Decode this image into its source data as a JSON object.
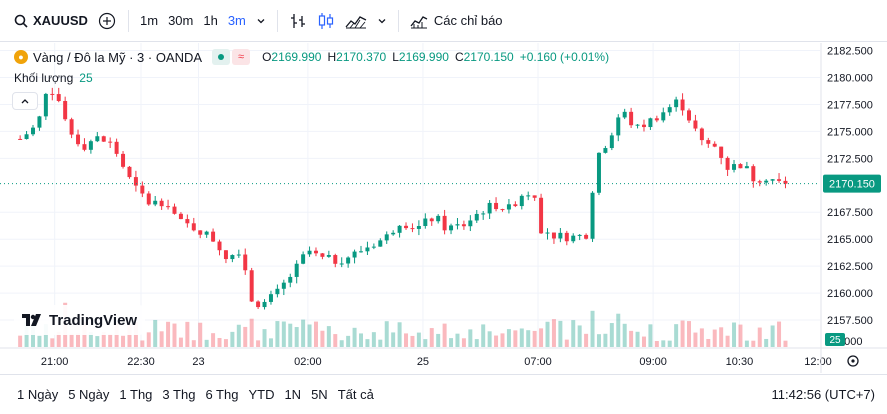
{
  "toolbar": {
    "symbol": "XAUUSD",
    "intervals": [
      "1m",
      "30m",
      "1h",
      "3m"
    ],
    "active_interval": "3m",
    "indicators_label": "Các chỉ báo"
  },
  "legend": {
    "symbol_name": "Vàng / Đô la Mỹ · 3 · OANDA",
    "open_label": "O",
    "open": "2169.990",
    "high_label": "H",
    "high": "2170.370",
    "low_label": "L",
    "low": "2169.990",
    "close_label": "C",
    "close": "2170.150",
    "change": "+0.160 (+0.01%)",
    "volume_label": "Khối lượng",
    "volume_value": "25"
  },
  "watermark": "TradingView",
  "bottom": {
    "ranges": [
      "1 Ngày",
      "5 Ngày",
      "1 Thg",
      "3 Thg",
      "6 Thg",
      "YTD",
      "1N",
      "5N",
      "Tất cả"
    ],
    "clock": "11:42:56 (UTC+7)"
  },
  "colors": {
    "up": "#089981",
    "down": "#f23645",
    "accent": "#2962ff"
  },
  "chart_data": {
    "type": "candlestick",
    "symbol": "XAUUSD",
    "interval": "3m",
    "y_ticks": [
      "2182.500",
      "2180.000",
      "2177.500",
      "2175.000",
      "2172.500",
      "2167.500",
      "2165.000",
      "2162.500",
      "2160.000",
      "2157.500"
    ],
    "ylim": [
      2155.0,
      2183.2
    ],
    "last_price": "2170.150",
    "last_volume": "25",
    "volume_axis_label": "5.000",
    "x_ticks": [
      "21:00",
      "22:30",
      "23",
      "02:00",
      "25",
      "07:00",
      "09:00",
      "10:30",
      "12:00"
    ],
    "x_tick_positions": [
      0.6,
      2.1,
      3.1,
      5.0,
      7.0,
      9.0,
      11.0,
      12.5,
      14.0
    ],
    "xlim": [
      -0.35,
      13.9
    ],
    "price_path": [
      [
        0.0,
        2174.3
      ],
      [
        0.3,
        2175.6
      ],
      [
        0.5,
        2179.3
      ],
      [
        0.65,
        2178.2
      ],
      [
        0.85,
        2175.0
      ],
      [
        1.1,
        2173.6
      ],
      [
        1.3,
        2174.4
      ],
      [
        1.6,
        2173.8
      ],
      [
        1.95,
        2170.0
      ],
      [
        2.25,
        2168.3
      ],
      [
        2.55,
        2168.6
      ],
      [
        2.75,
        2166.6
      ],
      [
        3.1,
        2165.9
      ],
      [
        3.35,
        2165.0
      ],
      [
        3.6,
        2163.3
      ],
      [
        3.85,
        2164.2
      ],
      [
        4.0,
        2159.5
      ],
      [
        4.2,
        2158.9
      ],
      [
        4.45,
        2159.9
      ],
      [
        4.8,
        2162.3
      ],
      [
        5.0,
        2164.0
      ],
      [
        5.2,
        2163.2
      ],
      [
        5.5,
        2163.0
      ],
      [
        5.8,
        2163.6
      ],
      [
        6.1,
        2164.5
      ],
      [
        6.35,
        2165.1
      ],
      [
        6.6,
        2166.7
      ],
      [
        6.9,
        2166.0
      ],
      [
        7.2,
        2167.1
      ],
      [
        7.4,
        2166.0
      ],
      [
        7.7,
        2166.3
      ],
      [
        8.0,
        2167.6
      ],
      [
        8.25,
        2168.2
      ],
      [
        8.5,
        2167.8
      ],
      [
        8.75,
        2169.4
      ],
      [
        8.95,
        2169.2
      ],
      [
        9.05,
        2166.0
      ],
      [
        9.3,
        2165.3
      ],
      [
        9.65,
        2165.2
      ],
      [
        9.85,
        2165.5
      ],
      [
        10.0,
        2172.0
      ],
      [
        10.25,
        2174.6
      ],
      [
        10.45,
        2177.0
      ],
      [
        10.7,
        2175.2
      ],
      [
        10.95,
        2176.0
      ],
      [
        11.2,
        2176.9
      ],
      [
        11.45,
        2177.9
      ],
      [
        11.6,
        2176.5
      ],
      [
        11.85,
        2173.9
      ],
      [
        12.1,
        2173.6
      ],
      [
        12.3,
        2171.6
      ],
      [
        12.55,
        2172.0
      ],
      [
        12.75,
        2170.6
      ],
      [
        13.0,
        2170.8
      ],
      [
        13.2,
        2170.2
      ],
      [
        13.3,
        2170.15
      ]
    ],
    "candle_count": 120,
    "grid": true
  }
}
